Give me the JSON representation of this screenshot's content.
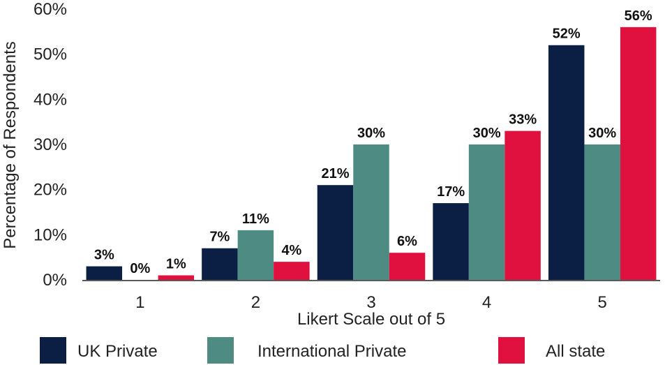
{
  "chart_data": {
    "type": "bar",
    "title": "",
    "xlabel": "Likert Scale out of 5",
    "ylabel": "Percentage of Respondents",
    "categories": [
      "1",
      "2",
      "3",
      "4",
      "5"
    ],
    "series": [
      {
        "name": "UK Private",
        "color": "#0b1f45",
        "values": [
          3,
          7,
          21,
          17,
          52
        ],
        "labels": [
          "3%",
          "7%",
          "21%",
          "17%",
          "52%"
        ]
      },
      {
        "name": "International Private",
        "color": "#4e8b83",
        "values": [
          0,
          11,
          30,
          30,
          30
        ],
        "labels": [
          "0%",
          "11%",
          "30%",
          "30%",
          "30%"
        ]
      },
      {
        "name": "All state",
        "color": "#e0113f",
        "values": [
          1,
          4,
          6,
          33,
          56
        ],
        "labels": [
          "1%",
          "4%",
          "6%",
          "33%",
          "56%"
        ]
      }
    ],
    "ylim": [
      0,
      60
    ],
    "yticks": [
      0,
      10,
      20,
      30,
      40,
      50,
      60
    ],
    "ytick_labels": [
      "0%",
      "10%",
      "20%",
      "30%",
      "40%",
      "50%",
      "60%"
    ],
    "grid": false,
    "legend": "bottom"
  }
}
